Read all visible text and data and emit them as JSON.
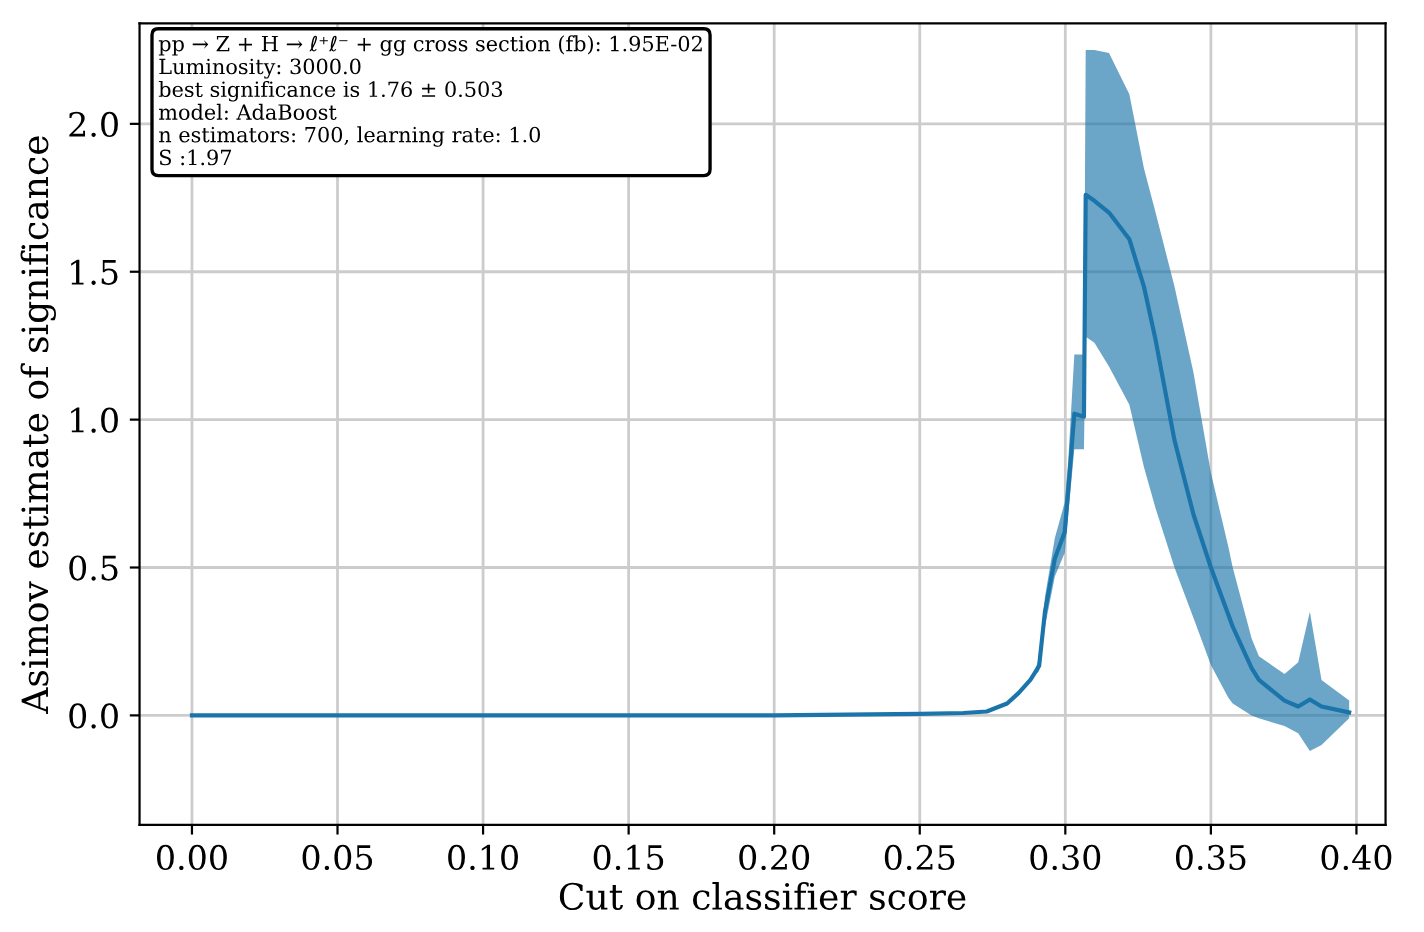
{
  "chart_data": {
    "type": "line",
    "xlabel": "Cut on classifier score",
    "ylabel": "Asimov estimate of significance",
    "annotations": [
      "pp → Z + H → ℓ⁺ℓ⁻ + gg cross section (fb): 1.95E-02",
      "Luminosity: 3000.0",
      "best significance is 1.76 ± 0.503",
      "model: AdaBoost",
      "n estimators: 700, learning rate: 1.0",
      "S :1.97"
    ],
    "x": [
      0,
      0.05,
      0.1,
      0.15,
      0.2,
      0.25,
      0.265,
      0.273,
      0.28,
      0.284,
      0.288,
      0.291,
      0.293,
      0.2964,
      0.2998,
      0.301,
      0.3031,
      0.3064,
      0.307,
      0.31,
      0.315,
      0.322,
      0.327,
      0.331,
      0.3375,
      0.344,
      0.35,
      0.356,
      0.3575,
      0.364,
      0.3665,
      0.3753,
      0.38,
      0.384,
      0.388,
      0.3975
    ],
    "series": [
      {
        "color": "#1b75ab",
        "values": [
          0,
          0,
          0,
          0,
          0,
          0.005,
          0.008,
          0.013,
          0.04,
          0.076,
          0.12,
          0.167,
          0.35,
          0.53,
          0.62,
          0.76,
          1.02,
          1.01,
          1.76,
          1.74,
          1.7,
          1.61,
          1.45,
          1.27,
          0.93,
          0.68,
          0.5,
          0.34,
          0.3,
          0.16,
          0.12,
          0.05,
          0.03,
          0.054,
          0.03,
          0.01
        ],
        "lower": [
          0,
          0,
          0,
          0,
          0,
          0.005,
          0.008,
          0.013,
          0.04,
          0.076,
          0.12,
          0.15,
          0.3,
          0.47,
          0.55,
          0.68,
          0.9,
          0.9,
          1.28,
          1.26,
          1.18,
          1.05,
          0.84,
          0.7,
          0.5,
          0.33,
          0.17,
          0.06,
          0.04,
          0.0,
          -0.01,
          -0.036,
          -0.06,
          -0.12,
          -0.1,
          -0.01
        ],
        "upper": [
          0,
          0,
          0,
          0,
          0,
          0.005,
          0.008,
          0.013,
          0.04,
          0.076,
          0.12,
          0.19,
          0.4,
          0.6,
          0.72,
          0.86,
          1.22,
          1.22,
          2.25,
          2.25,
          2.24,
          2.1,
          1.85,
          1.7,
          1.45,
          1.16,
          0.82,
          0.57,
          0.5,
          0.26,
          0.2,
          0.14,
          0.18,
          0.35,
          0.12,
          0.05
        ]
      }
    ],
    "xlim": [
      -0.018,
      0.41
    ],
    "ylim": [
      -0.37,
      2.34
    ],
    "xticks": [
      {
        "value": 0,
        "label": "0.00"
      },
      0.05,
      {
        "value": 0.1,
        "label": "0.10"
      },
      0.15,
      {
        "value": 0.2,
        "label": "0.20"
      },
      0.25,
      {
        "value": 0.3,
        "label": "0.30"
      },
      0.35,
      {
        "value": 0.4,
        "label": "0.40"
      }
    ],
    "yticks": [
      {
        "value": 0,
        "label": "0.0"
      },
      0.5,
      {
        "value": 1,
        "label": "1.0"
      },
      1.5,
      {
        "value": 2,
        "label": "2.0"
      }
    ],
    "grid": true,
    "legend": false,
    "marker": "none",
    "line_style": "solid"
  }
}
